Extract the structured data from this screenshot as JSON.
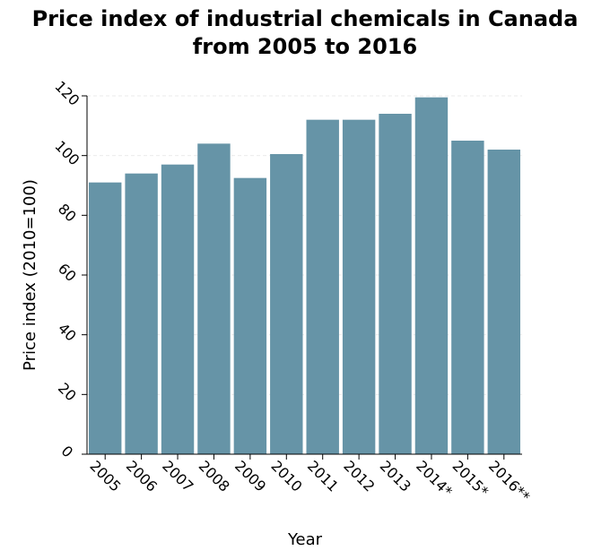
{
  "chart_data": {
    "type": "bar",
    "title_lines": [
      "Price index of industrial chemicals in Canada",
      "from 2005 to 2016"
    ],
    "xlabel": "Year",
    "ylabel": "Price index (2010=100)",
    "categories": [
      "2005",
      "2006",
      "2007",
      "2008",
      "2009",
      "2010",
      "2011",
      "2012",
      "2013",
      "2014*",
      "2015*",
      "2016**"
    ],
    "values": [
      91,
      94,
      97,
      104,
      92.5,
      100.5,
      112,
      112,
      114,
      119.5,
      105,
      102
    ],
    "ylim": [
      0,
      120
    ],
    "yticks": [
      0,
      20,
      40,
      60,
      80,
      100,
      120
    ],
    "ytick_labels": [
      "0",
      "20",
      "40",
      "60",
      "80",
      "100",
      "120"
    ],
    "bar_color": "#6694a7",
    "grid": true,
    "legend": "none"
  }
}
